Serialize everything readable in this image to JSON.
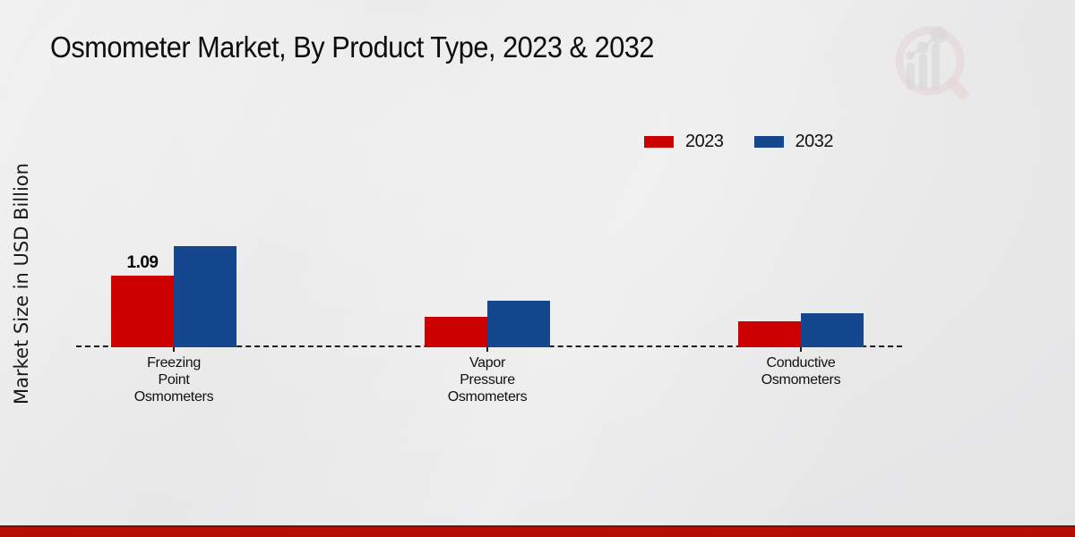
{
  "title": "Osmometer Market, By Product Type, 2023 & 2032",
  "ylabel": "Market Size in USD Billion",
  "chart_data": {
    "type": "bar",
    "categories": [
      "Freezing Point Osmometers",
      "Vapor Pressure Osmometers",
      "Conductive Osmometers"
    ],
    "series": [
      {
        "name": "2023",
        "color": "#cc0000",
        "values": [
          1.09,
          0.46,
          0.4
        ]
      },
      {
        "name": "2032",
        "color": "#15478f",
        "values": [
          1.54,
          0.71,
          0.52
        ]
      }
    ],
    "data_labels": [
      {
        "series_index": 0,
        "category_index": 0,
        "text": "1.09"
      }
    ],
    "ylim": [
      0,
      1.7
    ],
    "grid": false,
    "baseline_style": "dashed",
    "legend_position": "top-right"
  },
  "icons": {
    "watermark": "mrfr-magnifier-growth-logo"
  },
  "colors": {
    "series_2023": "#cc0000",
    "series_2032": "#15478f",
    "axis_line": "#1c1c1c",
    "footer_bar": "#b00c04",
    "background": "#e8e8e9"
  }
}
